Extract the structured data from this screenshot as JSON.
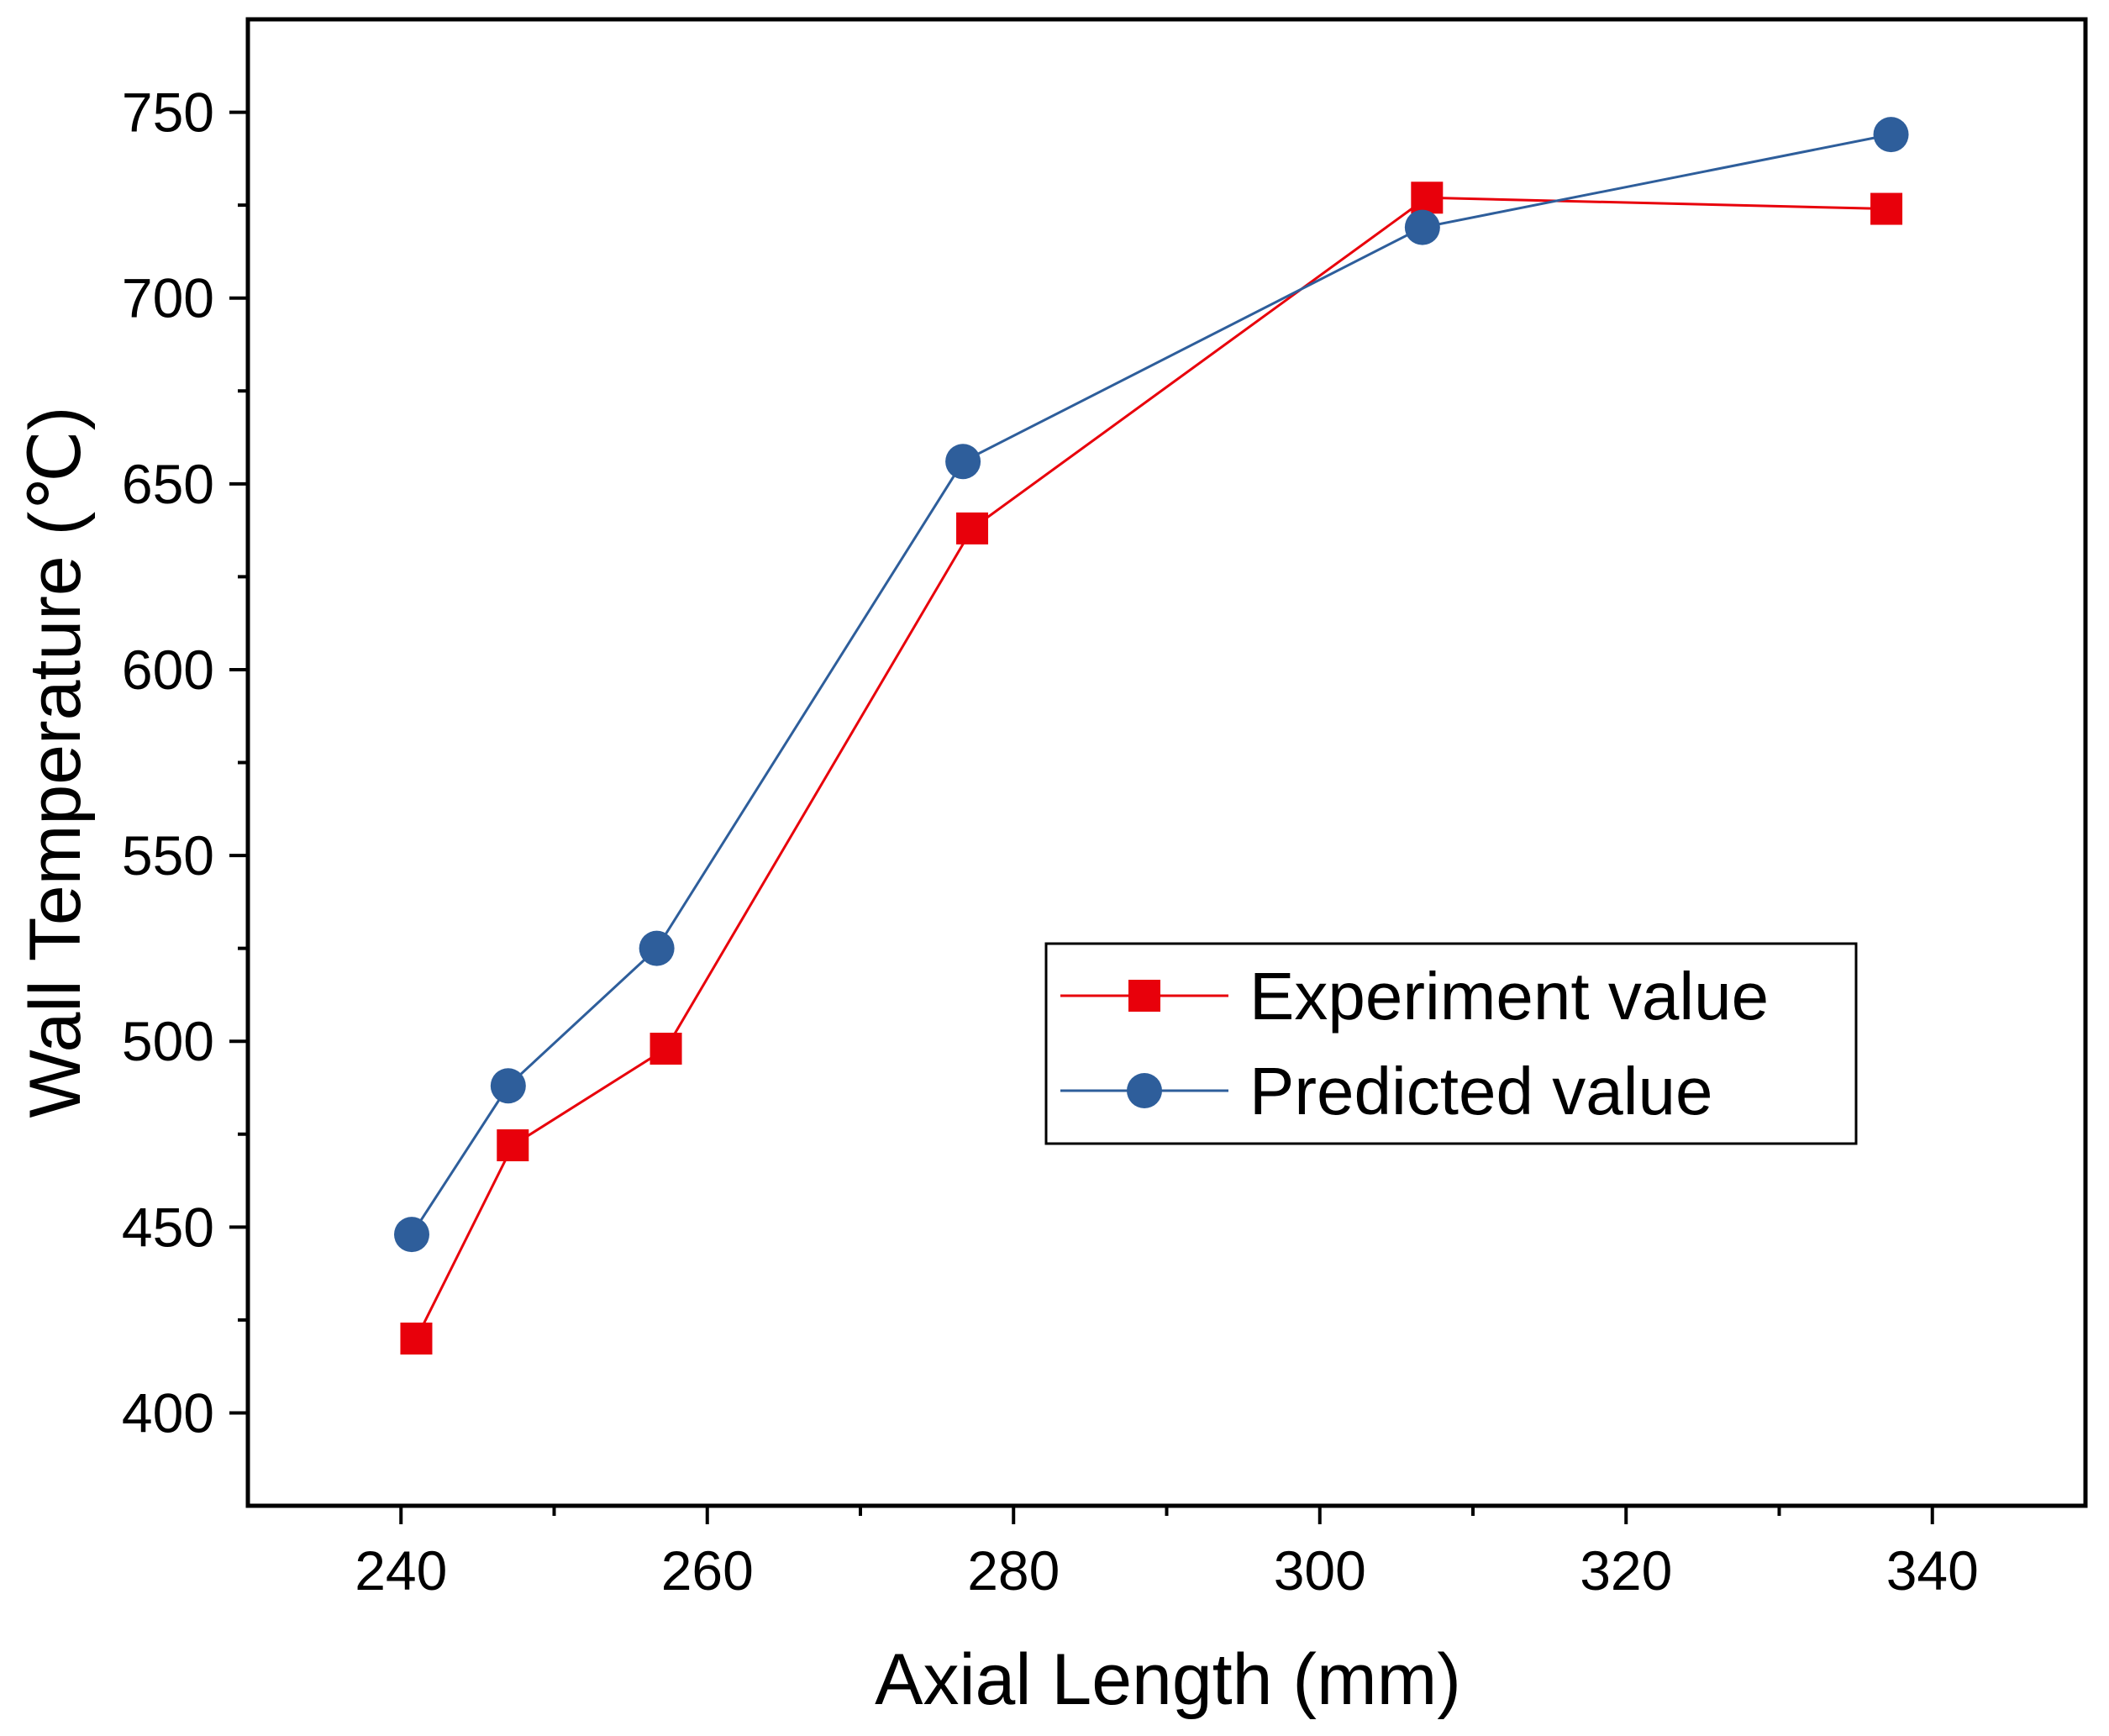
{
  "chart_data": {
    "type": "line",
    "xlabel": "Axial Length (mm)",
    "ylabel": "Wall Temperature (℃)",
    "xlim": [
      230,
      350
    ],
    "ylim": [
      375,
      775
    ],
    "x_ticks": [
      240,
      260,
      280,
      300,
      320,
      340
    ],
    "x_minor_ticks": [
      250,
      270,
      290,
      310,
      330
    ],
    "y_ticks": [
      400,
      450,
      500,
      550,
      600,
      650,
      700,
      750
    ],
    "y_minor_ticks": [
      425,
      475,
      525,
      575,
      625,
      675,
      725
    ],
    "grid": false,
    "legend_position": "center-right",
    "series": [
      {
        "name": "Experiment value",
        "marker": "square",
        "color": "#e8000b",
        "x": [
          241,
          247.3,
          257.3,
          277.3,
          307,
          337
        ],
        "y": [
          420,
          472,
          498,
          638,
          727,
          724
        ]
      },
      {
        "name": "Predicted value",
        "marker": "circle",
        "color": "#2e5e9b",
        "x": [
          240.7,
          247,
          256.7,
          276.7,
          306.7,
          337.3
        ],
        "y": [
          448,
          488,
          525,
          656,
          719,
          744
        ]
      }
    ]
  }
}
